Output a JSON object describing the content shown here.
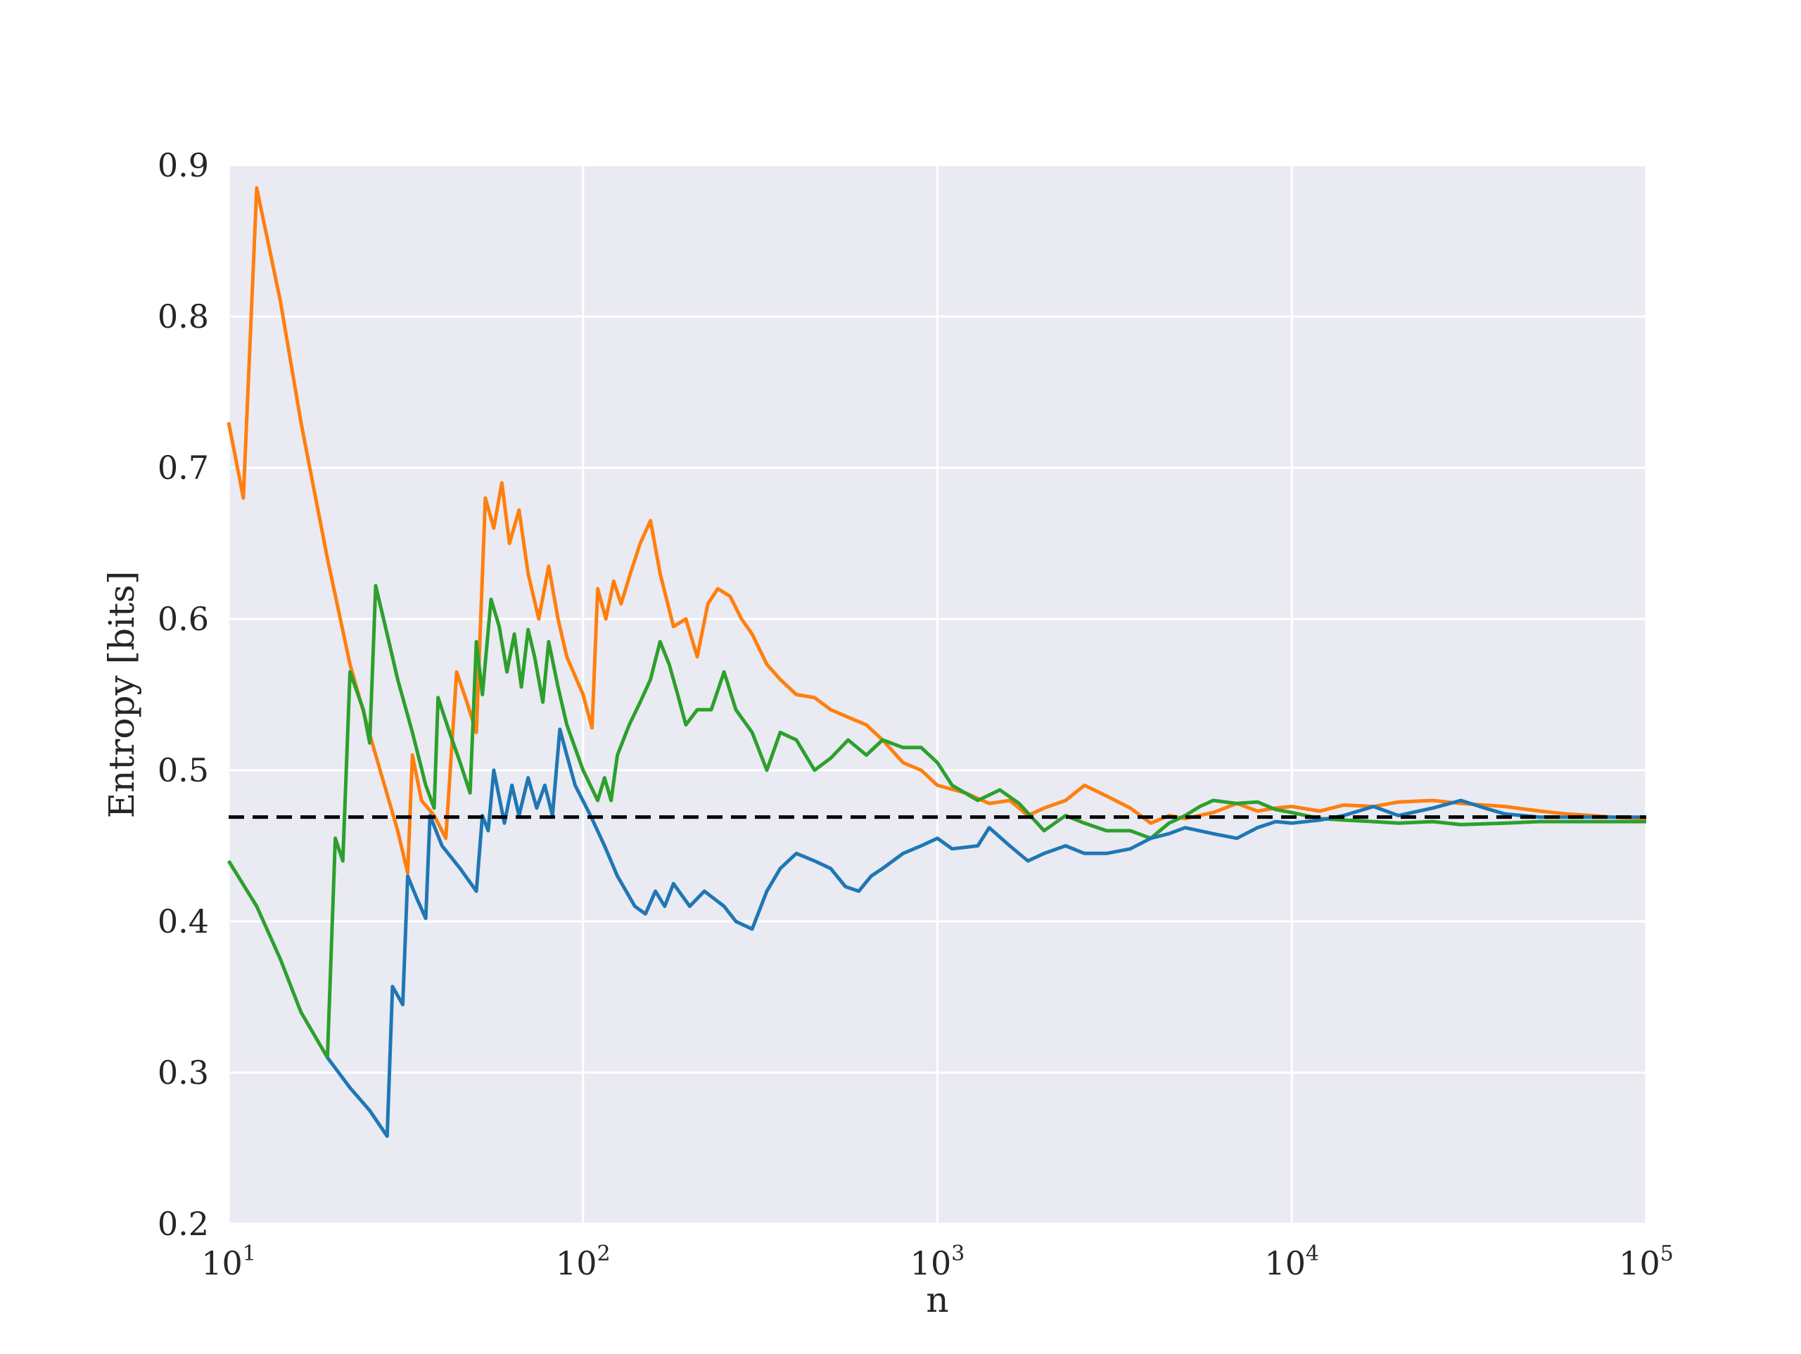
{
  "chart_data": {
    "type": "line",
    "title": "",
    "xlabel": "n",
    "ylabel": "Entropy [bits]",
    "x_scale": "log",
    "xlim": [
      10,
      100000
    ],
    "ylim": [
      0.2,
      0.9
    ],
    "grid": true,
    "x_ticks": [
      {
        "value": 10,
        "base": "10",
        "exp": "1"
      },
      {
        "value": 100,
        "base": "10",
        "exp": "2"
      },
      {
        "value": 1000,
        "base": "10",
        "exp": "3"
      },
      {
        "value": 10000,
        "base": "10",
        "exp": "4"
      },
      {
        "value": 100000,
        "base": "10",
        "exp": "5"
      }
    ],
    "y_ticks": [
      {
        "value": 0.2,
        "label": "0.2"
      },
      {
        "value": 0.3,
        "label": "0.3"
      },
      {
        "value": 0.4,
        "label": "0.4"
      },
      {
        "value": 0.5,
        "label": "0.5"
      },
      {
        "value": 0.6,
        "label": "0.6"
      },
      {
        "value": 0.7,
        "label": "0.7"
      },
      {
        "value": 0.8,
        "label": "0.8"
      },
      {
        "value": 0.9,
        "label": "0.9"
      }
    ],
    "reference_line": {
      "y": 0.469,
      "style": "dashed",
      "color": "#000000"
    },
    "colors": {
      "background": "#eaeaf2",
      "grid": "#ffffff",
      "blue": "#1f77b4",
      "orange": "#ff7f0e",
      "green": "#2ca02c"
    },
    "series": [
      {
        "color": "#ff7f0e",
        "points": [
          [
            10,
            0.73
          ],
          [
            11,
            0.68
          ],
          [
            12,
            0.885
          ],
          [
            14,
            0.81
          ],
          [
            16,
            0.73
          ],
          [
            19,
            0.64
          ],
          [
            22,
            0.57
          ],
          [
            26,
            0.51
          ],
          [
            30,
            0.46
          ],
          [
            32,
            0.432
          ],
          [
            33,
            0.51
          ],
          [
            35,
            0.48
          ],
          [
            38,
            0.47
          ],
          [
            41,
            0.455
          ],
          [
            44,
            0.565
          ],
          [
            47,
            0.545
          ],
          [
            50,
            0.525
          ],
          [
            53,
            0.68
          ],
          [
            56,
            0.66
          ],
          [
            59,
            0.69
          ],
          [
            62,
            0.65
          ],
          [
            66,
            0.672
          ],
          [
            70,
            0.63
          ],
          [
            75,
            0.6
          ],
          [
            80,
            0.635
          ],
          [
            85,
            0.6
          ],
          [
            90,
            0.575
          ],
          [
            100,
            0.55
          ],
          [
            106,
            0.528
          ],
          [
            110,
            0.62
          ],
          [
            116,
            0.6
          ],
          [
            122,
            0.625
          ],
          [
            128,
            0.61
          ],
          [
            136,
            0.63
          ],
          [
            145,
            0.65
          ],
          [
            155,
            0.665
          ],
          [
            165,
            0.63
          ],
          [
            180,
            0.595
          ],
          [
            195,
            0.6
          ],
          [
            210,
            0.575
          ],
          [
            225,
            0.61
          ],
          [
            240,
            0.62
          ],
          [
            260,
            0.615
          ],
          [
            280,
            0.6
          ],
          [
            300,
            0.59
          ],
          [
            330,
            0.57
          ],
          [
            360,
            0.56
          ],
          [
            400,
            0.55
          ],
          [
            450,
            0.548
          ],
          [
            500,
            0.54
          ],
          [
            560,
            0.535
          ],
          [
            630,
            0.53
          ],
          [
            700,
            0.52
          ],
          [
            800,
            0.505
          ],
          [
            900,
            0.5
          ],
          [
            1000,
            0.49
          ],
          [
            1200,
            0.485
          ],
          [
            1400,
            0.478
          ],
          [
            1600,
            0.48
          ],
          [
            1800,
            0.47
          ],
          [
            2000,
            0.475
          ],
          [
            2300,
            0.48
          ],
          [
            2600,
            0.49
          ],
          [
            3000,
            0.483
          ],
          [
            3500,
            0.475
          ],
          [
            4000,
            0.465
          ],
          [
            4500,
            0.47
          ],
          [
            5000,
            0.468
          ],
          [
            6000,
            0.472
          ],
          [
            7000,
            0.478
          ],
          [
            8000,
            0.473
          ],
          [
            9000,
            0.475
          ],
          [
            10000,
            0.476
          ],
          [
            12000,
            0.473
          ],
          [
            14000,
            0.477
          ],
          [
            17000,
            0.476
          ],
          [
            20000,
            0.479
          ],
          [
            25000,
            0.48
          ],
          [
            30000,
            0.478
          ],
          [
            40000,
            0.476
          ],
          [
            50000,
            0.473
          ],
          [
            60000,
            0.471
          ],
          [
            70000,
            0.47
          ],
          [
            80000,
            0.469
          ],
          [
            100000,
            0.468
          ]
        ]
      },
      {
        "color": "#2ca02c",
        "points": [
          [
            10,
            0.44
          ],
          [
            12,
            0.41
          ],
          [
            14,
            0.375
          ],
          [
            16,
            0.34
          ],
          [
            19,
            0.31
          ],
          [
            20,
            0.455
          ],
          [
            21,
            0.44
          ],
          [
            22,
            0.565
          ],
          [
            24,
            0.54
          ],
          [
            25,
            0.518
          ],
          [
            26,
            0.622
          ],
          [
            28,
            0.59
          ],
          [
            30,
            0.56
          ],
          [
            33,
            0.525
          ],
          [
            36,
            0.49
          ],
          [
            38,
            0.475
          ],
          [
            39,
            0.548
          ],
          [
            42,
            0.525
          ],
          [
            45,
            0.505
          ],
          [
            48,
            0.485
          ],
          [
            50,
            0.585
          ],
          [
            52,
            0.55
          ],
          [
            55,
            0.613
          ],
          [
            58,
            0.595
          ],
          [
            61,
            0.565
          ],
          [
            64,
            0.59
          ],
          [
            67,
            0.555
          ],
          [
            70,
            0.593
          ],
          [
            73,
            0.575
          ],
          [
            77,
            0.545
          ],
          [
            80,
            0.585
          ],
          [
            85,
            0.555
          ],
          [
            90,
            0.53
          ],
          [
            100,
            0.5
          ],
          [
            110,
            0.48
          ],
          [
            115,
            0.495
          ],
          [
            120,
            0.48
          ],
          [
            125,
            0.51
          ],
          [
            135,
            0.53
          ],
          [
            145,
            0.545
          ],
          [
            155,
            0.56
          ],
          [
            165,
            0.585
          ],
          [
            175,
            0.57
          ],
          [
            185,
            0.55
          ],
          [
            195,
            0.53
          ],
          [
            210,
            0.54
          ],
          [
            230,
            0.54
          ],
          [
            250,
            0.565
          ],
          [
            270,
            0.54
          ],
          [
            300,
            0.525
          ],
          [
            330,
            0.5
          ],
          [
            360,
            0.525
          ],
          [
            400,
            0.52
          ],
          [
            450,
            0.5
          ],
          [
            500,
            0.508
          ],
          [
            560,
            0.52
          ],
          [
            630,
            0.51
          ],
          [
            700,
            0.52
          ],
          [
            800,
            0.515
          ],
          [
            900,
            0.515
          ],
          [
            1000,
            0.505
          ],
          [
            1100,
            0.49
          ],
          [
            1300,
            0.48
          ],
          [
            1500,
            0.487
          ],
          [
            1700,
            0.478
          ],
          [
            2000,
            0.46
          ],
          [
            2300,
            0.47
          ],
          [
            2600,
            0.465
          ],
          [
            3000,
            0.46
          ],
          [
            3500,
            0.46
          ],
          [
            4000,
            0.455
          ],
          [
            4500,
            0.465
          ],
          [
            5000,
            0.47
          ],
          [
            5500,
            0.476
          ],
          [
            6000,
            0.48
          ],
          [
            7000,
            0.478
          ],
          [
            8000,
            0.479
          ],
          [
            9000,
            0.474
          ],
          [
            10000,
            0.472
          ],
          [
            12000,
            0.468
          ],
          [
            14000,
            0.467
          ],
          [
            17000,
            0.466
          ],
          [
            20000,
            0.465
          ],
          [
            25000,
            0.466
          ],
          [
            30000,
            0.464
          ],
          [
            40000,
            0.465
          ],
          [
            50000,
            0.466
          ],
          [
            70000,
            0.466
          ],
          [
            100000,
            0.466
          ]
        ]
      },
      {
        "color": "#1f77b4",
        "points": [
          [
            19,
            0.31
          ],
          [
            22,
            0.29
          ],
          [
            25,
            0.275
          ],
          [
            28,
            0.258
          ],
          [
            29,
            0.357
          ],
          [
            31,
            0.345
          ],
          [
            32,
            0.43
          ],
          [
            34,
            0.415
          ],
          [
            36,
            0.402
          ],
          [
            37,
            0.47
          ],
          [
            40,
            0.45
          ],
          [
            45,
            0.435
          ],
          [
            50,
            0.42
          ],
          [
            52,
            0.47
          ],
          [
            54,
            0.46
          ],
          [
            56,
            0.5
          ],
          [
            60,
            0.465
          ],
          [
            63,
            0.49
          ],
          [
            66,
            0.47
          ],
          [
            70,
            0.495
          ],
          [
            74,
            0.475
          ],
          [
            78,
            0.49
          ],
          [
            82,
            0.47
          ],
          [
            86,
            0.527
          ],
          [
            90,
            0.51
          ],
          [
            95,
            0.49
          ],
          [
            105,
            0.47
          ],
          [
            115,
            0.45
          ],
          [
            125,
            0.43
          ],
          [
            140,
            0.41
          ],
          [
            150,
            0.405
          ],
          [
            160,
            0.42
          ],
          [
            170,
            0.41
          ],
          [
            180,
            0.425
          ],
          [
            200,
            0.41
          ],
          [
            220,
            0.42
          ],
          [
            250,
            0.41
          ],
          [
            270,
            0.4
          ],
          [
            300,
            0.395
          ],
          [
            330,
            0.42
          ],
          [
            360,
            0.435
          ],
          [
            400,
            0.445
          ],
          [
            450,
            0.44
          ],
          [
            500,
            0.435
          ],
          [
            550,
            0.423
          ],
          [
            600,
            0.42
          ],
          [
            650,
            0.43
          ],
          [
            700,
            0.435
          ],
          [
            800,
            0.445
          ],
          [
            900,
            0.45
          ],
          [
            1000,
            0.455
          ],
          [
            1100,
            0.448
          ],
          [
            1300,
            0.45
          ],
          [
            1400,
            0.462
          ],
          [
            1600,
            0.45
          ],
          [
            1800,
            0.44
          ],
          [
            2000,
            0.445
          ],
          [
            2300,
            0.45
          ],
          [
            2600,
            0.445
          ],
          [
            3000,
            0.445
          ],
          [
            3500,
            0.448
          ],
          [
            4000,
            0.455
          ],
          [
            4500,
            0.458
          ],
          [
            5000,
            0.462
          ],
          [
            6000,
            0.458
          ],
          [
            7000,
            0.455
          ],
          [
            8000,
            0.462
          ],
          [
            9000,
            0.466
          ],
          [
            10000,
            0.465
          ],
          [
            12000,
            0.467
          ],
          [
            14000,
            0.47
          ],
          [
            17000,
            0.476
          ],
          [
            20000,
            0.47
          ],
          [
            25000,
            0.475
          ],
          [
            30000,
            0.48
          ],
          [
            35000,
            0.475
          ],
          [
            40000,
            0.471
          ],
          [
            50000,
            0.469
          ],
          [
            70000,
            0.469
          ],
          [
            100000,
            0.469
          ]
        ]
      }
    ]
  }
}
